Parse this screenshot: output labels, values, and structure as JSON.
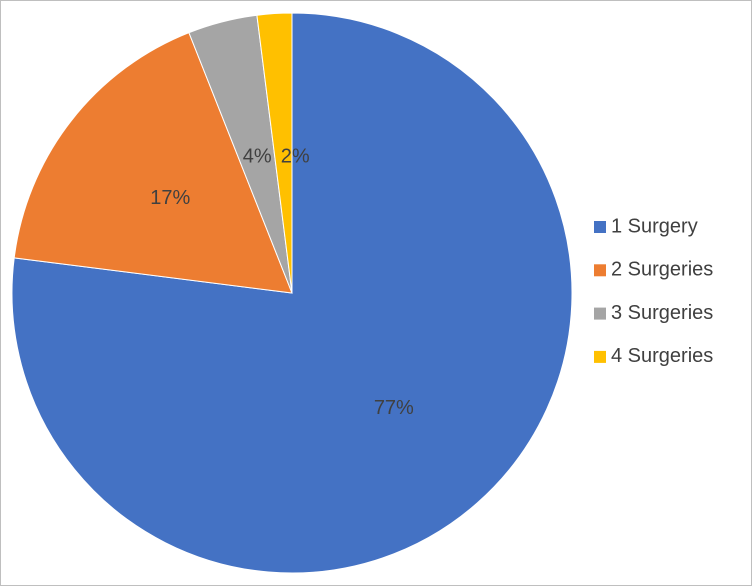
{
  "chart_data": {
    "type": "pie",
    "categories": [
      "1 Surgery",
      "2 Surgeries",
      "3 Surgeries",
      "4 Surgeries"
    ],
    "values": [
      77,
      17,
      4,
      2
    ],
    "value_labels": [
      "77%",
      "17%",
      "4%",
      "2%"
    ],
    "colors": [
      "#4472c4",
      "#ed7d31",
      "#a5a5a5",
      "#ffc000"
    ],
    "legend": "right"
  }
}
